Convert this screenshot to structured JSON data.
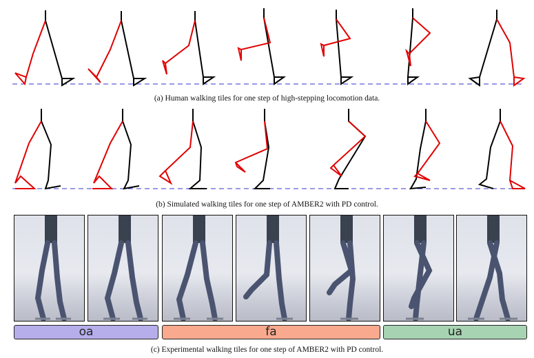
{
  "captions": {
    "a": "(a) Human walking tiles for one step of high-stepping locomotion data.",
    "b": "(b) Simulated walking tiles for one step of AMBER2 with PD control.",
    "c": "(c) Experimental walking tiles for one step of AMBER2 with PD control."
  },
  "phases": [
    {
      "label": "oa",
      "color": "#b6adeb"
    },
    {
      "label": "fa",
      "color": "#f9a98d"
    },
    {
      "label": "ua",
      "color": "#a8d3b3"
    }
  ],
  "colors": {
    "stance_leg": "#000000",
    "swing_leg": "#e00000",
    "ground": "#3333cc"
  }
}
